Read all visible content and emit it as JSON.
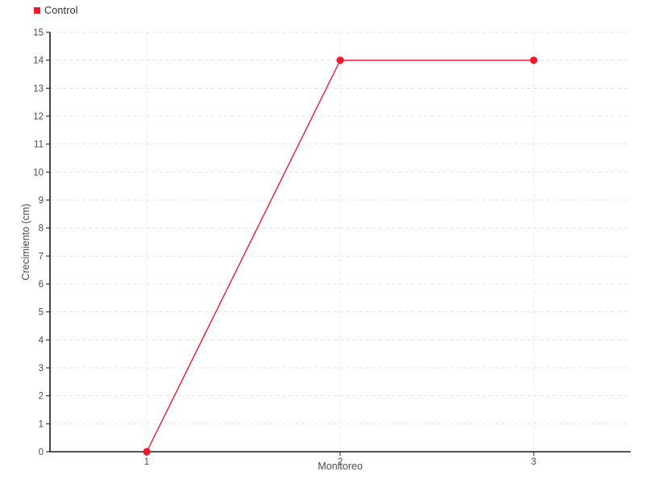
{
  "chart_data": {
    "type": "line",
    "title": "",
    "xlabel": "Monitoreo",
    "ylabel": "Crecimiento (cm)",
    "categories": [
      "1",
      "2",
      "3"
    ],
    "series": [
      {
        "name": "Control",
        "color": "#f2192e",
        "values": [
          0,
          14,
          14
        ]
      }
    ],
    "ylim": [
      0,
      15
    ],
    "y_tick_step": 1,
    "grid": true,
    "grid_style": "dashed",
    "legend_position": "top-left",
    "marker": "circle",
    "colors": {
      "series_red": "#f2192e",
      "axis_line": "#1a1a1a",
      "grid_line": "#e4e4e4",
      "tick_text": "#4a4a4a",
      "axis_title_text": "#4a4a4a",
      "background": "#ffffff"
    }
  }
}
